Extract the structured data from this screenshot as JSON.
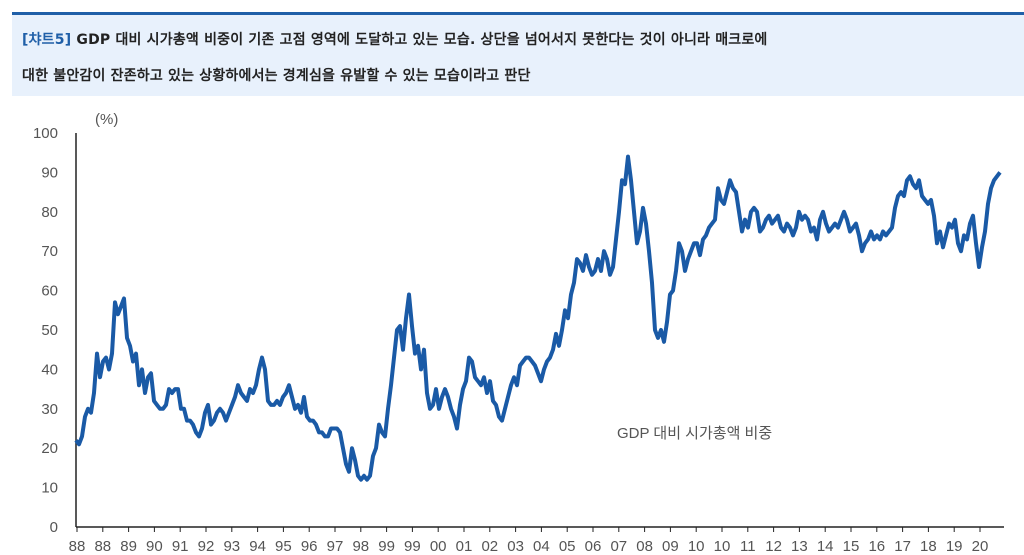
{
  "header": {
    "tag": "[챠트5]",
    "line1": "GDP 대비 시가총액 비중이 기존 고점 영역에 도달하고 있는 모습. 상단을 넘어서지 못한다는 것이 아니라 매크로에",
    "line2": "대한 불안감이 잔존하고 있는 상황하에서는 경계심을 유발할 수 있는 모습이라고 판단"
  },
  "chart_data": {
    "type": "line",
    "title": "",
    "ylabel": "(%)",
    "xlabel": "",
    "ylim": [
      0,
      100
    ],
    "yticks": [
      "0",
      "10",
      "20",
      "30",
      "40",
      "50",
      "60",
      "70",
      "80",
      "90",
      "100"
    ],
    "xticks": [
      "88",
      "88",
      "89",
      "90",
      "91",
      "92",
      "93",
      "94",
      "95",
      "96",
      "97",
      "98",
      "99",
      "99",
      "00",
      "01",
      "02",
      "03",
      "04",
      "05",
      "06",
      "07",
      "08",
      "09",
      "10",
      "10",
      "11",
      "12",
      "13",
      "14",
      "15",
      "16",
      "17",
      "18",
      "19",
      "20"
    ],
    "grid": false,
    "legend": "center-right",
    "series": [
      {
        "name": "GDP 대비 시가총액 비중",
        "color": "#1a5aa6",
        "values": [
          22,
          21,
          23,
          28,
          30,
          29,
          34,
          44,
          38,
          42,
          43,
          40,
          44,
          57,
          54,
          56,
          58,
          48,
          46,
          42,
          44,
          36,
          40,
          34,
          38,
          39,
          32,
          31,
          30,
          30,
          31,
          35,
          34,
          35,
          35,
          30,
          30,
          27,
          27,
          26,
          24,
          23,
          25,
          29,
          31,
          26,
          27,
          29,
          30,
          29,
          27,
          29,
          31,
          33,
          36,
          34,
          33,
          32,
          35,
          34,
          36,
          40,
          43,
          40,
          32,
          31,
          31,
          32,
          31,
          33,
          34,
          36,
          33,
          30,
          31,
          29,
          33,
          28,
          27,
          27,
          26,
          24,
          24,
          23,
          23,
          25,
          25,
          25,
          24,
          20,
          16,
          14,
          20,
          17,
          13,
          12,
          13,
          12,
          13,
          18,
          20,
          26,
          24,
          23,
          30,
          36,
          43,
          50,
          51,
          45,
          53,
          59,
          51,
          44,
          46,
          40,
          45,
          34,
          30,
          31,
          35,
          30,
          33,
          35,
          33,
          30,
          28,
          25,
          31,
          35,
          37,
          43,
          42,
          38,
          37,
          36,
          38,
          34,
          37,
          32,
          31,
          28,
          27,
          30,
          33,
          36,
          38,
          36,
          41,
          42,
          43,
          43,
          42,
          41,
          39,
          37,
          40,
          42,
          43,
          45,
          49,
          46,
          50,
          55,
          53,
          59,
          62,
          68,
          67,
          65,
          69,
          66,
          64,
          65,
          68,
          65,
          70,
          68,
          64,
          66,
          73,
          80,
          88,
          87,
          94,
          88,
          80,
          72,
          75,
          81,
          77,
          70,
          62,
          50,
          48,
          50,
          47,
          52,
          59,
          60,
          65,
          72,
          70,
          65,
          68,
          70,
          72,
          72,
          69,
          73,
          74,
          76,
          77,
          78,
          86,
          83,
          82,
          85,
          88,
          86,
          85,
          80,
          75,
          78,
          76,
          80,
          81,
          80,
          75,
          76,
          78,
          79,
          77,
          78,
          79,
          76,
          75,
          77,
          76,
          74,
          76,
          80,
          78,
          79,
          78,
          75,
          76,
          73,
          78,
          80,
          77,
          75,
          76,
          77,
          76,
          78,
          80,
          78,
          75,
          76,
          77,
          74,
          70,
          72,
          73,
          75,
          73,
          74,
          73,
          75,
          74,
          75,
          76,
          81,
          84,
          85,
          84,
          88,
          89,
          87,
          86,
          88,
          84,
          83,
          82,
          83,
          79,
          72,
          75,
          71,
          74,
          77,
          76,
          78,
          72,
          70,
          74,
          73,
          77,
          79,
          72,
          66,
          71,
          75,
          82,
          86,
          88,
          89,
          90
        ]
      }
    ]
  }
}
